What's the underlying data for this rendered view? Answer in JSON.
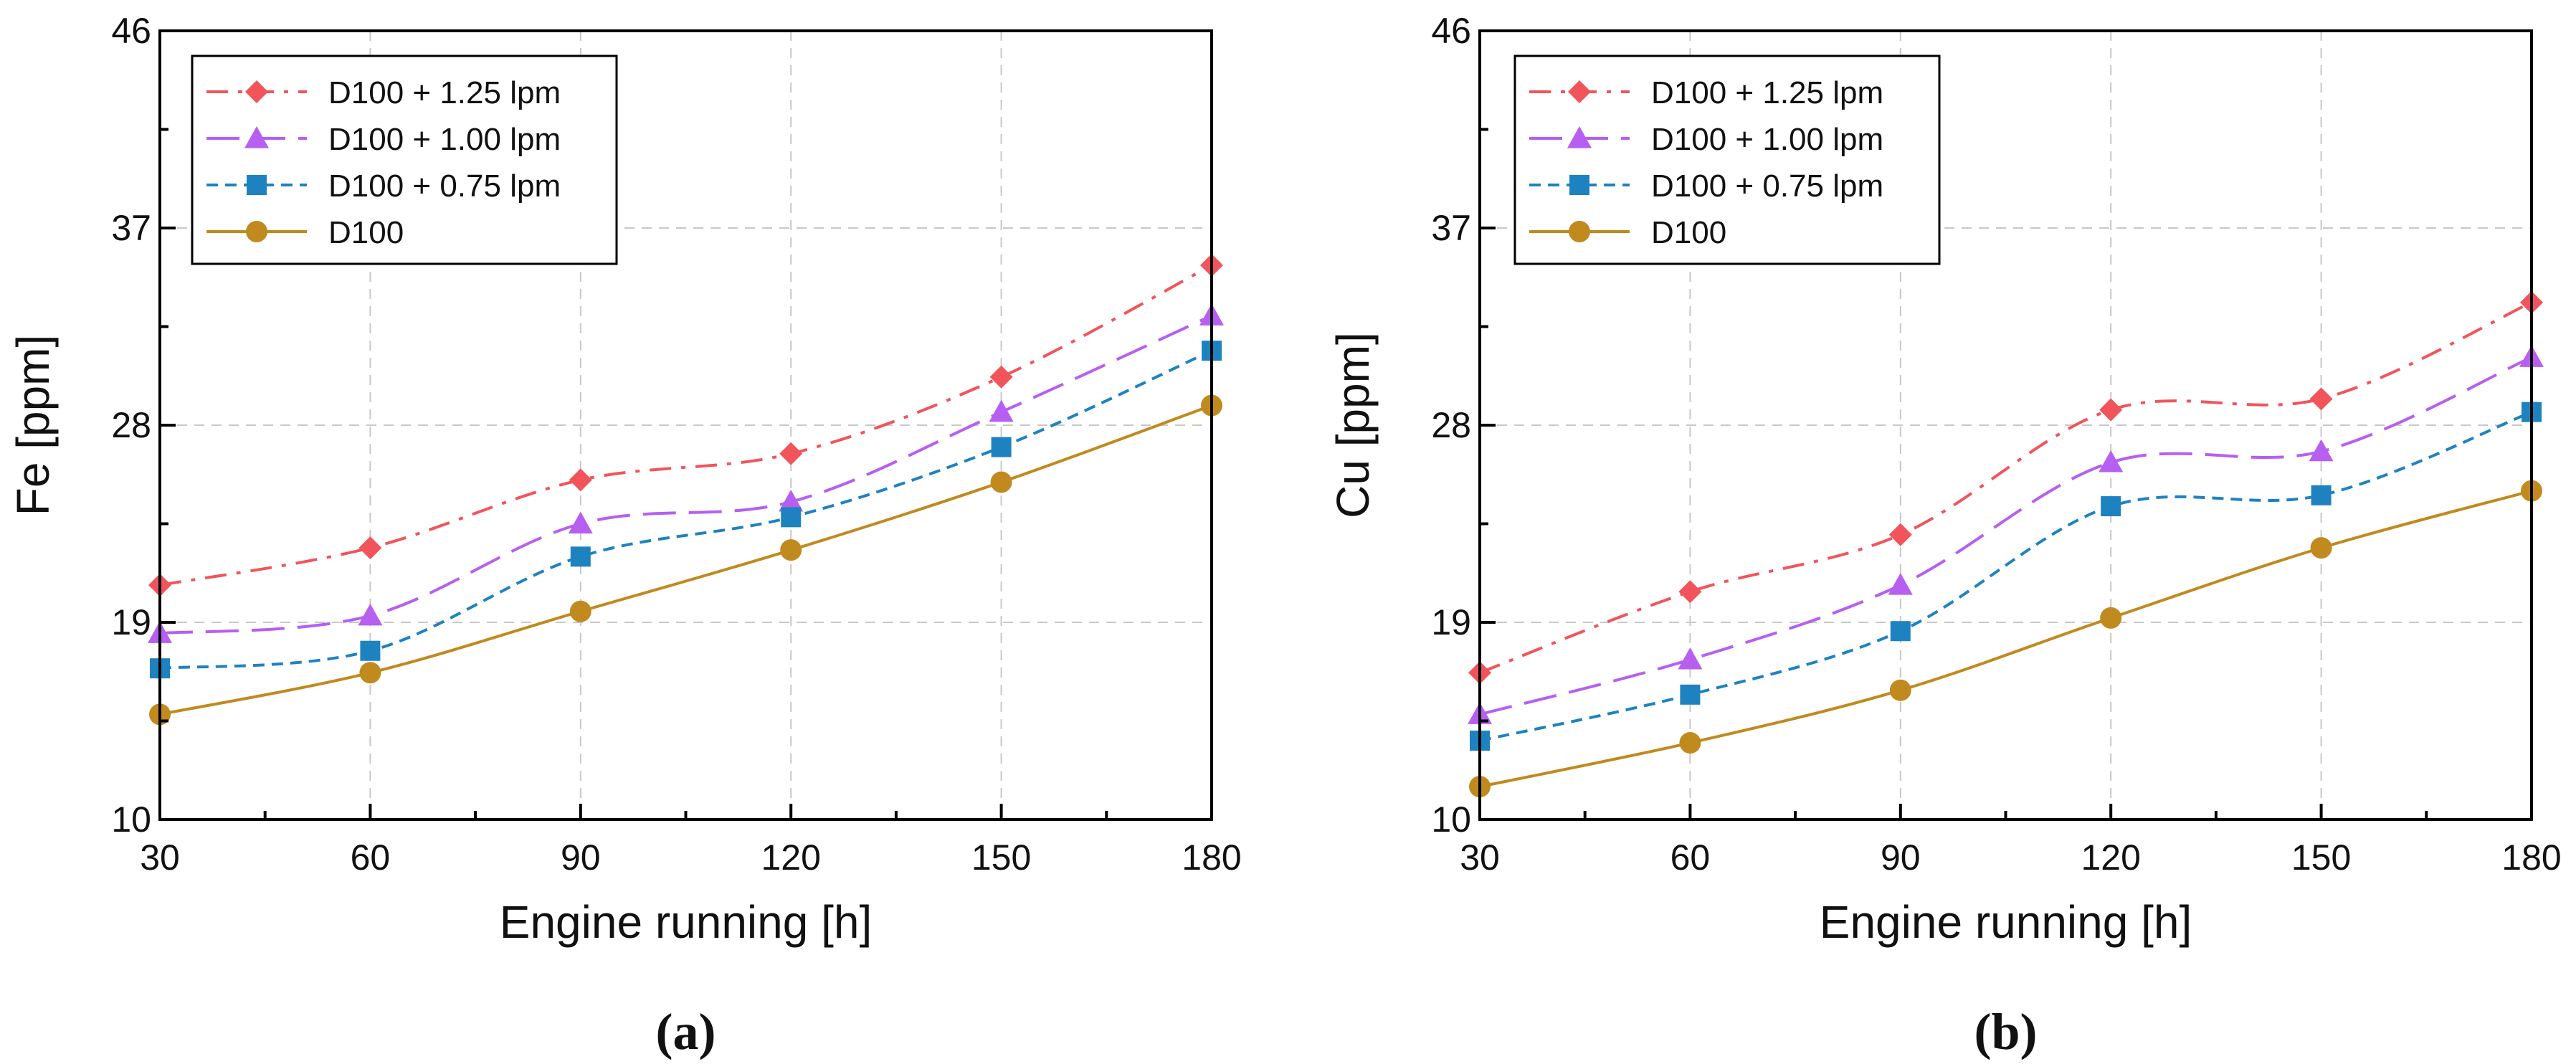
{
  "chart_data": [
    {
      "type": "line",
      "panel_label": "(a)",
      "xlabel": "Engine running [h]",
      "ylabel": "Fe [ppm]",
      "x": [
        30,
        60,
        90,
        120,
        150,
        180
      ],
      "xlim": [
        30,
        180
      ],
      "ylim": [
        10,
        46
      ],
      "xticks": [
        30,
        60,
        90,
        120,
        150,
        180
      ],
      "yticks": [
        10,
        19,
        28,
        37,
        46
      ],
      "grid": true,
      "legend_position": "top-left",
      "series": [
        {
          "name": "D100 + 1.25 lpm",
          "color": "#f2545b",
          "marker": "diamond",
          "dash": "dashdot",
          "values": [
            20.7,
            22.4,
            25.5,
            26.7,
            30.2,
            35.3
          ]
        },
        {
          "name": "D100 + 1.00 lpm",
          "color": "#b65ff0",
          "marker": "triangle",
          "dash": "longdash",
          "values": [
            18.5,
            19.3,
            23.5,
            24.5,
            28.6,
            33.0
          ]
        },
        {
          "name": "D100 + 0.75 lpm",
          "color": "#1f82c0",
          "marker": "square",
          "dash": "shortdash",
          "values": [
            16.9,
            17.7,
            22.0,
            23.8,
            27.0,
            31.4
          ]
        },
        {
          "name": "D100",
          "color": "#c08a1e",
          "marker": "circle",
          "dash": "solid",
          "values": [
            14.8,
            16.7,
            19.5,
            22.3,
            25.4,
            28.9
          ]
        }
      ]
    },
    {
      "type": "line",
      "panel_label": "(b)",
      "xlabel": "Engine running [h]",
      "ylabel": "Cu [ppm]",
      "x": [
        30,
        60,
        90,
        120,
        150,
        180
      ],
      "xlim": [
        30,
        180
      ],
      "ylim": [
        10,
        46
      ],
      "xticks": [
        30,
        60,
        90,
        120,
        150,
        180
      ],
      "yticks": [
        10,
        19,
        28,
        37,
        46
      ],
      "grid": true,
      "legend_position": "top-left",
      "series": [
        {
          "name": "D100 + 1.25 lpm",
          "color": "#f2545b",
          "marker": "diamond",
          "dash": "dashdot",
          "values": [
            16.7,
            20.4,
            23.0,
            28.7,
            29.2,
            33.6
          ]
        },
        {
          "name": "D100 + 1.00 lpm",
          "color": "#b65ff0",
          "marker": "triangle",
          "dash": "longdash",
          "values": [
            14.8,
            17.3,
            20.7,
            26.3,
            26.8,
            31.1
          ]
        },
        {
          "name": "D100 + 0.75 lpm",
          "color": "#1f82c0",
          "marker": "square",
          "dash": "shortdash",
          "values": [
            13.6,
            15.7,
            18.6,
            24.3,
            24.8,
            28.6
          ]
        },
        {
          "name": "D100",
          "color": "#c08a1e",
          "marker": "circle",
          "dash": "solid",
          "values": [
            11.5,
            13.5,
            15.9,
            19.2,
            22.4,
            25.0
          ]
        }
      ]
    }
  ]
}
